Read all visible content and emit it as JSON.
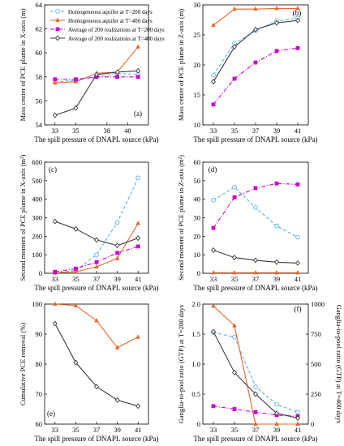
{
  "figure": {
    "xlabel": "The spill pressure of DNAPL source (kPa)"
  },
  "legend": {
    "entries": [
      {
        "label": "Homogeneous aquifer at T=200 days",
        "color": "#5aaef0",
        "marker": "circle-open",
        "dash": "dash"
      },
      {
        "label": "Homogeneous aquifer at T=400 days",
        "color": "#e8672a",
        "marker": "triangle-filled",
        "dash": "solid"
      },
      {
        "label": "Average of 200 realizations at T=200 days",
        "color": "#cc00cc",
        "marker": "square-filled",
        "dash": "dashdot"
      },
      {
        "label": "Average of 200 realizations at T=400 days",
        "color": "#3a3a3a",
        "marker": "diamond-open",
        "dash": "solid"
      }
    ]
  },
  "chart_data": [
    {
      "panel": "(a)",
      "type": "line",
      "ylabel": "Mass center of PCE plume in X-axis (m)",
      "xlabel": "The spill pressure of DNAPL source (kPa)",
      "xlim": [
        32,
        42
      ],
      "xticks": [
        33,
        35,
        38,
        40
      ],
      "xticklabels": [
        "33",
        "35",
        "38",
        "40"
      ],
      "ylim": [
        54,
        64
      ],
      "yticks": [
        54,
        56,
        58,
        60,
        62,
        64
      ],
      "x": [
        33,
        35,
        37,
        39,
        41
      ],
      "series": [
        {
          "name": "Homogeneous aquifer at T=200 days",
          "values": [
            57.6,
            57.7,
            58.0,
            58.3,
            58.2
          ]
        },
        {
          "name": "Homogeneous aquifer at T=400 days",
          "values": [
            57.5,
            57.6,
            58.3,
            58.4,
            60.5
          ]
        },
        {
          "name": "Average of 200 realizations at T=200 days",
          "values": [
            57.8,
            57.8,
            58.0,
            58.0,
            58.0
          ]
        },
        {
          "name": "Average of 200 realizations at T=400 days",
          "values": [
            54.8,
            55.4,
            58.2,
            58.4,
            58.5
          ]
        }
      ]
    },
    {
      "panel": "(b)",
      "type": "line",
      "ylabel": "Mass center of PCE plume in Z-axis (m)",
      "xlabel": "The spill pressure of DNAPL source (kPa)",
      "xlim": [
        32,
        42
      ],
      "xticks": [
        33,
        35,
        37,
        39,
        41
      ],
      "xticklabels": [
        "33",
        "35",
        "37",
        "39",
        "41"
      ],
      "ylim": [
        10,
        30
      ],
      "yticks": [
        10,
        15,
        20,
        25,
        30
      ],
      "x": [
        33,
        35,
        37,
        39,
        41
      ],
      "series": [
        {
          "name": "Homogeneous aquifer at T=200 days",
          "values": [
            18.3,
            23.6,
            25.7,
            27.3,
            27.8
          ]
        },
        {
          "name": "Homogeneous aquifer at T=400 days",
          "values": [
            26.6,
            29.3,
            29.3,
            29.4,
            29.4
          ]
        },
        {
          "name": "Average of 200 realizations at T=200 days",
          "values": [
            13.4,
            17.7,
            20.4,
            22.3,
            22.8
          ]
        },
        {
          "name": "Average of 200 realizations at T=400 days",
          "values": [
            17.2,
            23.0,
            25.9,
            27.0,
            27.4
          ]
        }
      ]
    },
    {
      "panel": "(c)",
      "type": "line",
      "ylabel": "Second moment of PCE plume in X-axis (m²)",
      "xlabel": "The spill pressure of DNAPL source (kPa)",
      "xlim": [
        32,
        42
      ],
      "xticks": [
        33,
        35,
        37,
        39,
        41
      ],
      "xticklabels": [
        "33",
        "35",
        "37",
        "39",
        "41"
      ],
      "ylim": [
        0,
        600
      ],
      "yticks": [
        0,
        100,
        200,
        300,
        400,
        500,
        600
      ],
      "x": [
        33,
        35,
        37,
        39,
        41
      ],
      "series": [
        {
          "name": "Homogeneous aquifer at T=200 days",
          "values": [
            3,
            15,
            100,
            275,
            515
          ]
        },
        {
          "name": "Homogeneous aquifer at T=400 days",
          "values": [
            2,
            8,
            35,
            80,
            270
          ]
        },
        {
          "name": "Average of 200 realizations at T=200 days",
          "values": [
            8,
            25,
            60,
            110,
            145
          ]
        },
        {
          "name": "Average of 200 realizations at T=400 days",
          "values": [
            280,
            240,
            180,
            150,
            190
          ]
        }
      ]
    },
    {
      "panel": "(d)",
      "type": "line",
      "ylabel": "Second moment of PCE plume in Z-axis (m²)",
      "xlabel": "The spill pressure of DNAPL source (kPa)",
      "xlim": [
        32,
        42
      ],
      "xticks": [
        33,
        35,
        37,
        39,
        41
      ],
      "xticklabels": [
        "33",
        "35",
        "37",
        "39",
        "41"
      ],
      "ylim": [
        0,
        60
      ],
      "yticks": [
        0,
        10,
        20,
        30,
        40,
        50,
        60
      ],
      "x": [
        33,
        35,
        37,
        39,
        41
      ],
      "series": [
        {
          "name": "Homogeneous aquifer at T=200 days",
          "values": [
            39.5,
            46.5,
            35.5,
            25.5,
            19.5
          ]
        },
        {
          "name": "Homogeneous aquifer at T=400 days",
          "values": [
            0.3,
            0.3,
            0.3,
            0.3,
            0.3
          ]
        },
        {
          "name": "Average of 200 realizations at T=200 days",
          "values": [
            24.5,
            41.0,
            46.0,
            48.5,
            48.0
          ]
        },
        {
          "name": "Average of 200 realizations at T=400 days",
          "values": [
            12.5,
            8.5,
            7.0,
            6.0,
            5.5
          ]
        }
      ]
    },
    {
      "panel": "(e)",
      "type": "line",
      "ylabel": "Cumulative PCE removal (%)",
      "xlabel": "The spill pressure of DNAPL source (kPa)",
      "xlim": [
        32,
        42
      ],
      "xticks": [
        33,
        35,
        37,
        39,
        41
      ],
      "xticklabels": [
        "33",
        "35",
        "37",
        "39",
        "41"
      ],
      "ylim": [
        60,
        100
      ],
      "yticks": [
        60,
        70,
        80,
        90,
        100
      ],
      "x": [
        33,
        35,
        37,
        39,
        41
      ],
      "series": [
        {
          "name": "Homogeneous aquifer at T=400 days",
          "values": [
            100,
            99.5,
            94.5,
            85.5,
            89.0
          ]
        },
        {
          "name": "Average of 200 realizations at T=400 days",
          "values": [
            93.5,
            80.5,
            72.5,
            68.0,
            66.0
          ]
        }
      ]
    },
    {
      "panel": "(f)",
      "type": "line",
      "ylabel": "Ganglia-to-pool ratio (GTP) at T=200 days",
      "y2label": "Ganglia-to-pool ratio (GTP) at T=400 days",
      "xlabel": "The spill pressure of DNAPL source (kPa)",
      "xlim": [
        32,
        42
      ],
      "xticks": [
        33,
        35,
        37,
        39,
        41
      ],
      "xticklabels": [
        "33",
        "35",
        "37",
        "39",
        "41"
      ],
      "ylim": [
        0,
        2.0
      ],
      "yticks": [
        0,
        0.5,
        1.0,
        1.5,
        2.0
      ],
      "yticklabels": [
        "0",
        "0.5",
        "1.0",
        "1.5",
        "2.0"
      ],
      "y2lim": [
        0,
        1000
      ],
      "y2ticks": [
        0,
        250,
        500,
        750,
        1000
      ],
      "x": [
        33,
        35,
        37,
        39,
        41
      ],
      "series": [
        {
          "name": "Homogeneous aquifer at T=200 days",
          "axis": "left",
          "values": [
            1.53,
            1.45,
            0.62,
            0.33,
            0.2
          ]
        },
        {
          "name": "Homogeneous aquifer at T=400 days",
          "axis": "right",
          "values": [
            985,
            820,
            0,
            0,
            0
          ]
        },
        {
          "name": "Average of 200 realizations at T=200 days",
          "axis": "left",
          "values": [
            0.3,
            0.25,
            0.2,
            0.15,
            0.13
          ]
        },
        {
          "name": "Average of 200 realizations at T=400 days",
          "axis": "right",
          "values": [
            770,
            430,
            250,
            90,
            50
          ]
        }
      ]
    }
  ]
}
